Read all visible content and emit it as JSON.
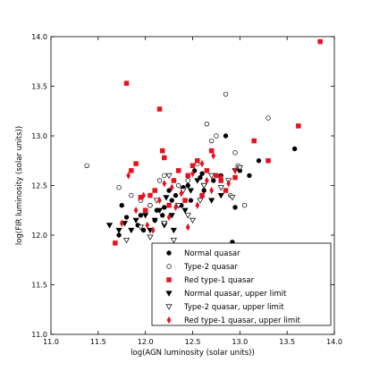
{
  "chart_data": {
    "type": "scatter",
    "title": "",
    "xlabel": "log(AGN luminosity (solar units))",
    "ylabel": "log(FIR luminosity (solar units))",
    "xlim": [
      11.0,
      14.0
    ],
    "ylim": [
      11.0,
      14.0
    ],
    "xticks": [
      "11.0",
      "11.5",
      "12.0",
      "12.5",
      "13.0",
      "13.5",
      "14.0"
    ],
    "yticks": [
      "11.0",
      "11.5",
      "12.0",
      "12.5",
      "13.0",
      "13.5",
      "14.0"
    ],
    "grid": false,
    "legend_position": "bottom-right",
    "series": [
      {
        "name": "Normal quasar",
        "marker": "filled-circle",
        "color": "#000000",
        "points": [
          [
            11.72,
            12.0
          ],
          [
            11.75,
            12.3
          ],
          [
            11.8,
            12.18
          ],
          [
            11.92,
            12.1
          ],
          [
            11.95,
            12.2
          ],
          [
            11.98,
            12.05
          ],
          [
            12.05,
            12.3
          ],
          [
            12.1,
            12.15
          ],
          [
            12.12,
            12.25
          ],
          [
            12.18,
            12.2
          ],
          [
            12.2,
            12.28
          ],
          [
            12.25,
            12.45
          ],
          [
            12.28,
            12.35
          ],
          [
            12.32,
            12.4
          ],
          [
            12.38,
            12.3
          ],
          [
            12.4,
            12.48
          ],
          [
            12.45,
            12.5
          ],
          [
            12.48,
            12.35
          ],
          [
            12.52,
            12.65
          ],
          [
            12.55,
            12.75
          ],
          [
            12.58,
            12.58
          ],
          [
            12.6,
            12.62
          ],
          [
            12.62,
            12.45
          ],
          [
            12.72,
            12.55
          ],
          [
            12.8,
            12.6
          ],
          [
            12.85,
            13.0
          ],
          [
            12.92,
            11.93
          ],
          [
            12.95,
            12.28
          ],
          [
            13.0,
            12.65
          ],
          [
            13.1,
            12.6
          ],
          [
            13.2,
            12.75
          ],
          [
            13.58,
            12.87
          ]
        ]
      },
      {
        "name": "Type-2 quasar",
        "marker": "open-circle",
        "color": "#000000",
        "points": [
          [
            11.38,
            12.7
          ],
          [
            11.72,
            12.48
          ],
          [
            11.85,
            12.4
          ],
          [
            11.95,
            12.35
          ],
          [
            12.05,
            12.3
          ],
          [
            12.15,
            12.55
          ],
          [
            12.2,
            12.6
          ],
          [
            12.35,
            12.5
          ],
          [
            12.45,
            12.55
          ],
          [
            12.55,
            12.72
          ],
          [
            12.65,
            13.12
          ],
          [
            12.7,
            12.95
          ],
          [
            12.75,
            13.0
          ],
          [
            12.85,
            13.42
          ],
          [
            12.9,
            12.4
          ],
          [
            12.95,
            12.83
          ],
          [
            12.98,
            12.7
          ],
          [
            13.05,
            12.3
          ],
          [
            13.3,
            13.18
          ]
        ]
      },
      {
        "name": "Red type-1 quasar",
        "marker": "filled-square",
        "color": "#e8111d",
        "points": [
          [
            11.68,
            11.92
          ],
          [
            11.8,
            13.53
          ],
          [
            11.85,
            12.65
          ],
          [
            11.9,
            12.72
          ],
          [
            11.95,
            12.38
          ],
          [
            12.0,
            12.25
          ],
          [
            12.05,
            12.4
          ],
          [
            12.1,
            12.45
          ],
          [
            12.15,
            13.27
          ],
          [
            12.18,
            12.85
          ],
          [
            12.2,
            12.78
          ],
          [
            12.25,
            12.3
          ],
          [
            12.3,
            12.55
          ],
          [
            12.35,
            12.65
          ],
          [
            12.42,
            12.35
          ],
          [
            12.45,
            12.6
          ],
          [
            12.5,
            12.7
          ],
          [
            12.55,
            12.75
          ],
          [
            12.6,
            12.4
          ],
          [
            12.65,
            12.65
          ],
          [
            12.7,
            12.85
          ],
          [
            12.75,
            12.6
          ],
          [
            12.8,
            12.55
          ],
          [
            12.85,
            12.45
          ],
          [
            12.95,
            12.58
          ],
          [
            13.15,
            12.95
          ],
          [
            13.3,
            12.75
          ],
          [
            13.62,
            13.1
          ],
          [
            13.85,
            13.95
          ]
        ]
      },
      {
        "name": "Normal quasar, upper limit",
        "marker": "filled-triangle-down",
        "color": "#000000",
        "points": [
          [
            11.62,
            12.1
          ],
          [
            11.72,
            12.05
          ],
          [
            11.78,
            12.12
          ],
          [
            11.85,
            12.05
          ],
          [
            11.9,
            12.15
          ],
          [
            12.0,
            12.2
          ],
          [
            12.05,
            12.05
          ],
          [
            12.1,
            12.15
          ],
          [
            12.15,
            12.25
          ],
          [
            12.2,
            12.1
          ],
          [
            12.22,
            12.38
          ],
          [
            12.28,
            12.2
          ],
          [
            12.3,
            12.05
          ],
          [
            12.35,
            12.3
          ],
          [
            12.42,
            12.25
          ],
          [
            12.48,
            12.45
          ],
          [
            12.55,
            12.55
          ],
          [
            12.62,
            12.5
          ],
          [
            12.7,
            12.35
          ],
          [
            12.8,
            12.4
          ],
          [
            12.95,
            12.65
          ]
        ]
      },
      {
        "name": "Type-2 quasar, upper limit",
        "marker": "open-triangle-down",
        "color": "#000000",
        "points": [
          [
            11.8,
            11.95
          ],
          [
            11.95,
            12.08
          ],
          [
            12.05,
            11.98
          ],
          [
            12.12,
            12.35
          ],
          [
            12.2,
            12.12
          ],
          [
            12.25,
            12.6
          ],
          [
            12.3,
            11.95
          ],
          [
            12.35,
            12.3
          ],
          [
            12.4,
            12.45
          ],
          [
            12.45,
            12.2
          ],
          [
            12.5,
            12.15
          ],
          [
            12.58,
            12.35
          ],
          [
            12.62,
            12.5
          ],
          [
            12.7,
            12.6
          ],
          [
            12.8,
            12.48
          ],
          [
            12.88,
            12.55
          ],
          [
            12.92,
            12.38
          ],
          [
            13.0,
            12.68
          ]
        ]
      },
      {
        "name": "Red type-1 quasar, upper limit",
        "marker": "filled-diamond",
        "color": "#e8111d",
        "points": [
          [
            11.75,
            12.12
          ],
          [
            11.82,
            12.6
          ],
          [
            11.9,
            12.25
          ],
          [
            11.98,
            12.4
          ],
          [
            12.02,
            12.1
          ],
          [
            12.08,
            12.05
          ],
          [
            12.15,
            12.35
          ],
          [
            12.2,
            12.52
          ],
          [
            12.25,
            12.18
          ],
          [
            12.28,
            12.48
          ],
          [
            12.32,
            12.28
          ],
          [
            12.38,
            12.42
          ],
          [
            12.45,
            12.08
          ],
          [
            12.5,
            12.62
          ],
          [
            12.55,
            12.3
          ],
          [
            12.6,
            12.72
          ],
          [
            12.65,
            12.55
          ],
          [
            12.7,
            12.45
          ],
          [
            12.72,
            12.8
          ],
          [
            12.8,
            12.58
          ],
          [
            12.88,
            12.52
          ],
          [
            12.95,
            12.65
          ]
        ]
      }
    ]
  }
}
